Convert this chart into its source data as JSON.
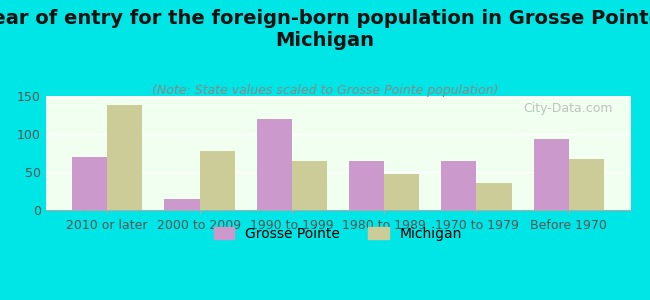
{
  "title": "Year of entry for the foreign-born population in Grosse Pointe,\nMichigan",
  "subtitle": "(Note: State values scaled to Grosse Pointe population)",
  "categories": [
    "2010 or later",
    "2000 to 2009",
    "1990 to 1999",
    "1980 to 1989",
    "1970 to 1979",
    "Before 1970"
  ],
  "grosse_pointe": [
    70,
    15,
    120,
    65,
    65,
    93
  ],
  "michigan": [
    138,
    77,
    65,
    47,
    35,
    67
  ],
  "color_grosse_pointe": "#cc99cc",
  "color_michigan": "#cccc99",
  "background_color": "#00e5e5",
  "plot_bg_start": "#f0fff0",
  "plot_bg_end": "#ffffff",
  "ylim": [
    0,
    150
  ],
  "yticks": [
    0,
    50,
    100,
    150
  ],
  "bar_width": 0.38,
  "legend_grosse_pointe": "Grosse Pointe",
  "legend_michigan": "Michigan",
  "watermark": "City-Data.com",
  "title_fontsize": 14,
  "subtitle_fontsize": 9,
  "tick_fontsize": 9,
  "legend_fontsize": 10
}
